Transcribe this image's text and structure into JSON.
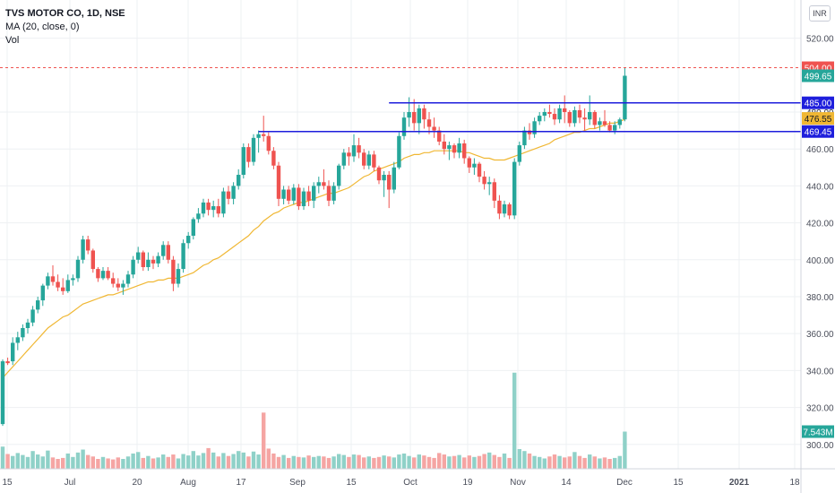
{
  "legend": {
    "symbol": "TVS MOTOR CO, 1D, NSE",
    "indicator": "MA (20, close, 0)",
    "volume": "Vol"
  },
  "currency": "INR",
  "colors": {
    "up": "#26a69a",
    "down": "#ef5350",
    "up_volume": "#8fd1c8",
    "down_volume": "#f5a5a3",
    "ma": "#f0b733",
    "level_line": "#1e1edc",
    "price_line": "#ef5350",
    "grid": "#eef0f3"
  },
  "chart_data": {
    "type": "candlestick",
    "x_tick_labels": [
      "15",
      "Jul",
      "20",
      "Aug",
      "17",
      "Sep",
      "15",
      "Oct",
      "19",
      "Nov",
      "14",
      "Dec",
      "15",
      "2021",
      "18"
    ],
    "y_tick_labels": [
      "300.00",
      "320.00",
      "340.00",
      "360.00",
      "380.00",
      "400.00",
      "420.00",
      "440.00",
      "460.00",
      "480.00",
      "520.00"
    ],
    "ylim": [
      296,
      530
    ],
    "grid": true,
    "candles": [
      [
        311,
        346,
        310,
        345
      ],
      [
        345,
        347,
        343,
        344
      ],
      [
        345,
        358,
        343,
        355
      ],
      [
        355,
        361,
        351,
        358
      ],
      [
        358,
        365,
        356,
        363
      ],
      [
        363,
        368,
        360,
        366
      ],
      [
        366,
        375,
        364,
        373
      ],
      [
        373,
        380,
        371,
        378
      ],
      [
        378,
        387,
        375,
        386
      ],
      [
        386,
        393,
        384,
        391
      ],
      [
        391,
        397,
        386,
        388
      ],
      [
        388,
        392,
        383,
        385
      ],
      [
        385,
        390,
        381,
        383
      ],
      [
        383,
        392,
        382,
        389
      ],
      [
        389,
        392,
        386,
        390
      ],
      [
        390,
        402,
        388,
        400
      ],
      [
        400,
        413,
        398,
        411
      ],
      [
        411,
        413,
        403,
        405
      ],
      [
        405,
        406,
        393,
        395
      ],
      [
        395,
        396,
        388,
        390
      ],
      [
        390,
        396,
        389,
        394
      ],
      [
        394,
        396,
        389,
        390
      ],
      [
        390,
        393,
        385,
        387
      ],
      [
        387,
        390,
        383,
        385
      ],
      [
        385,
        389,
        381,
        387
      ],
      [
        387,
        394,
        385,
        392
      ],
      [
        392,
        402,
        390,
        400
      ],
      [
        400,
        407,
        398,
        404
      ],
      [
        404,
        405,
        394,
        396
      ],
      [
        396,
        404,
        394,
        400
      ],
      [
        400,
        402,
        395,
        398
      ],
      [
        398,
        404,
        396,
        402
      ],
      [
        402,
        410,
        400,
        408
      ],
      [
        408,
        410,
        398,
        400
      ],
      [
        400,
        402,
        383,
        387
      ],
      [
        387,
        398,
        385,
        395
      ],
      [
        395,
        411,
        393,
        409
      ],
      [
        409,
        415,
        406,
        413
      ],
      [
        413,
        423,
        411,
        422
      ],
      [
        422,
        428,
        420,
        425
      ],
      [
        425,
        433,
        423,
        431
      ],
      [
        431,
        433,
        424,
        427
      ],
      [
        427,
        432,
        423,
        429
      ],
      [
        429,
        433,
        423,
        425
      ],
      [
        425,
        439,
        423,
        437
      ],
      [
        437,
        440,
        430,
        433
      ],
      [
        433,
        442,
        430,
        440
      ],
      [
        440,
        449,
        438,
        446
      ],
      [
        446,
        463,
        444,
        461
      ],
      [
        461,
        463,
        450,
        453
      ],
      [
        453,
        468,
        451,
        466
      ],
      [
        466,
        470,
        458,
        468
      ],
      [
        468,
        478,
        464,
        467
      ],
      [
        467,
        469,
        457,
        459
      ],
      [
        459,
        461,
        449,
        451
      ],
      [
        451,
        453,
        429,
        433
      ],
      [
        433,
        440,
        430,
        438
      ],
      [
        438,
        440,
        430,
        432
      ],
      [
        432,
        441,
        430,
        439
      ],
      [
        439,
        441,
        427,
        429
      ],
      [
        429,
        439,
        427,
        437
      ],
      [
        437,
        440,
        429,
        432
      ],
      [
        432,
        442,
        428,
        440
      ],
      [
        440,
        445,
        436,
        442
      ],
      [
        442,
        449,
        438,
        440
      ],
      [
        440,
        443,
        429,
        432
      ],
      [
        432,
        442,
        430,
        440
      ],
      [
        440,
        452,
        438,
        451
      ],
      [
        451,
        460,
        449,
        458
      ],
      [
        458,
        461,
        451,
        456
      ],
      [
        456,
        468,
        453,
        462
      ],
      [
        462,
        466,
        455,
        458
      ],
      [
        458,
        460,
        449,
        451
      ],
      [
        451,
        459,
        449,
        457
      ],
      [
        457,
        459,
        448,
        450
      ],
      [
        450,
        451,
        441,
        443
      ],
      [
        443,
        448,
        434,
        446
      ],
      [
        446,
        448,
        428,
        438
      ],
      [
        438,
        453,
        436,
        450
      ],
      [
        450,
        469,
        449,
        467
      ],
      [
        467,
        480,
        465,
        477
      ],
      [
        477,
        488,
        472,
        480
      ],
      [
        480,
        487,
        470,
        474
      ],
      [
        474,
        484,
        468,
        482
      ],
      [
        482,
        484,
        471,
        476
      ],
      [
        476,
        480,
        468,
        472
      ],
      [
        472,
        477,
        466,
        470
      ],
      [
        470,
        472,
        462,
        464
      ],
      [
        464,
        468,
        457,
        460
      ],
      [
        460,
        464,
        454,
        462
      ],
      [
        462,
        463,
        455,
        458
      ],
      [
        458,
        466,
        455,
        463
      ],
      [
        463,
        465,
        452,
        455
      ],
      [
        455,
        456,
        447,
        450
      ],
      [
        450,
        455,
        446,
        452
      ],
      [
        452,
        453,
        442,
        445
      ],
      [
        445,
        448,
        438,
        441
      ],
      [
        441,
        445,
        435,
        442
      ],
      [
        442,
        444,
        428,
        432
      ],
      [
        432,
        435,
        422,
        425
      ],
      [
        425,
        432,
        423,
        430
      ],
      [
        430,
        431,
        422,
        424
      ],
      [
        424,
        455,
        422,
        453
      ],
      [
        453,
        464,
        451,
        462
      ],
      [
        462,
        472,
        460,
        470
      ],
      [
        470,
        474,
        465,
        468
      ],
      [
        468,
        477,
        466,
        475
      ],
      [
        475,
        480,
        473,
        478
      ],
      [
        478,
        482,
        475,
        480
      ],
      [
        480,
        484,
        477,
        479
      ],
      [
        479,
        482,
        473,
        476
      ],
      [
        476,
        484,
        474,
        482
      ],
      [
        482,
        489,
        474,
        480
      ],
      [
        480,
        481,
        472,
        474
      ],
      [
        474,
        483,
        472,
        481
      ],
      [
        481,
        484,
        474,
        477
      ],
      [
        477,
        482,
        470,
        476
      ],
      [
        476,
        489,
        473,
        480
      ],
      [
        480,
        481,
        471,
        473
      ],
      [
        473,
        477,
        470,
        475
      ],
      [
        475,
        481,
        472,
        473
      ],
      [
        473,
        475,
        469,
        470
      ],
      [
        470,
        475,
        468,
        473
      ],
      [
        473,
        477,
        471,
        476
      ],
      [
        476,
        504,
        475,
        499.65
      ]
    ],
    "volumes_millions": [
      4.5,
      3.0,
      2.6,
      3.2,
      2.8,
      2.4,
      3.6,
      2.9,
      2.5,
      3.7,
      2.3,
      2.0,
      2.2,
      3.1,
      2.4,
      3.3,
      3.9,
      2.8,
      2.5,
      2.0,
      2.4,
      2.1,
      1.9,
      2.3,
      2.0,
      2.5,
      3.1,
      3.4,
      2.2,
      2.6,
      2.1,
      2.3,
      2.9,
      2.4,
      2.9,
      2.1,
      3.0,
      2.7,
      3.6,
      2.7,
      3.2,
      4.2,
      3.3,
      2.5,
      3.2,
      2.6,
      3.0,
      3.6,
      3.3,
      2.5,
      3.5,
      2.9,
      11.4,
      4.1,
      3.1,
      2.4,
      2.8,
      2.2,
      2.6,
      2.4,
      2.3,
      2.7,
      2.4,
      2.6,
      2.5,
      2.2,
      2.5,
      3.0,
      2.8,
      2.4,
      2.9,
      2.8,
      2.3,
      2.5,
      2.2,
      2.4,
      2.7,
      2.5,
      2.3,
      2.9,
      3.1,
      2.6,
      2.3,
      2.9,
      2.7,
      2.4,
      2.2,
      3.2,
      2.9,
      2.5,
      2.6,
      2.8,
      2.3,
      2.7,
      2.4,
      2.6,
      3.0,
      3.3,
      2.8,
      2.4,
      3.1,
      2.2,
      19.5,
      4.0,
      3.6,
      3.1,
      2.6,
      2.4,
      2.1,
      2.5,
      2.9,
      2.6,
      2.3,
      2.5,
      3.4,
      2.6,
      2.2,
      2.9,
      2.5,
      2.1,
      2.3,
      2.0,
      2.2,
      2.6,
      7.543
    ],
    "volume_label": "7.543M",
    "moving_average": [
      336,
      339,
      342,
      345,
      348,
      351,
      354,
      357,
      360,
      363,
      365,
      367,
      369,
      370,
      372,
      374,
      376,
      377,
      378,
      379,
      380,
      381,
      381,
      382,
      383,
      384,
      385,
      386,
      387,
      388,
      388,
      389,
      389,
      390,
      390,
      390,
      391,
      392,
      393,
      395,
      397,
      398,
      400,
      401,
      403,
      405,
      407,
      409,
      411,
      413,
      416,
      418,
      421,
      423,
      425,
      426,
      428,
      429,
      430,
      431,
      431,
      432,
      433,
      434,
      435,
      436,
      436,
      437,
      438,
      439,
      441,
      443,
      445,
      446,
      448,
      449,
      450,
      451,
      452,
      453,
      455,
      456,
      457,
      457,
      458,
      458,
      459,
      459,
      459,
      459,
      459,
      459,
      458,
      458,
      457,
      456,
      455,
      455,
      454,
      454,
      454,
      455,
      456,
      457,
      458,
      459,
      460,
      461,
      462,
      463,
      465,
      466,
      467,
      468,
      469,
      469,
      470,
      471,
      471,
      472,
      473,
      474,
      474,
      475,
      476
    ],
    "horizontal_levels": [
      {
        "value": 485.0,
        "label": "485.00",
        "from_index": 77
      },
      {
        "value": 469.45,
        "label": "469.45",
        "from_index": 51
      }
    ],
    "price_line": {
      "value": 504.0,
      "label": "504.00"
    },
    "last_close": {
      "value": 499.65,
      "label": "499.65"
    },
    "ma_last": {
      "value": 476.55,
      "label": "476.55"
    },
    "partial_label": "480.00"
  }
}
